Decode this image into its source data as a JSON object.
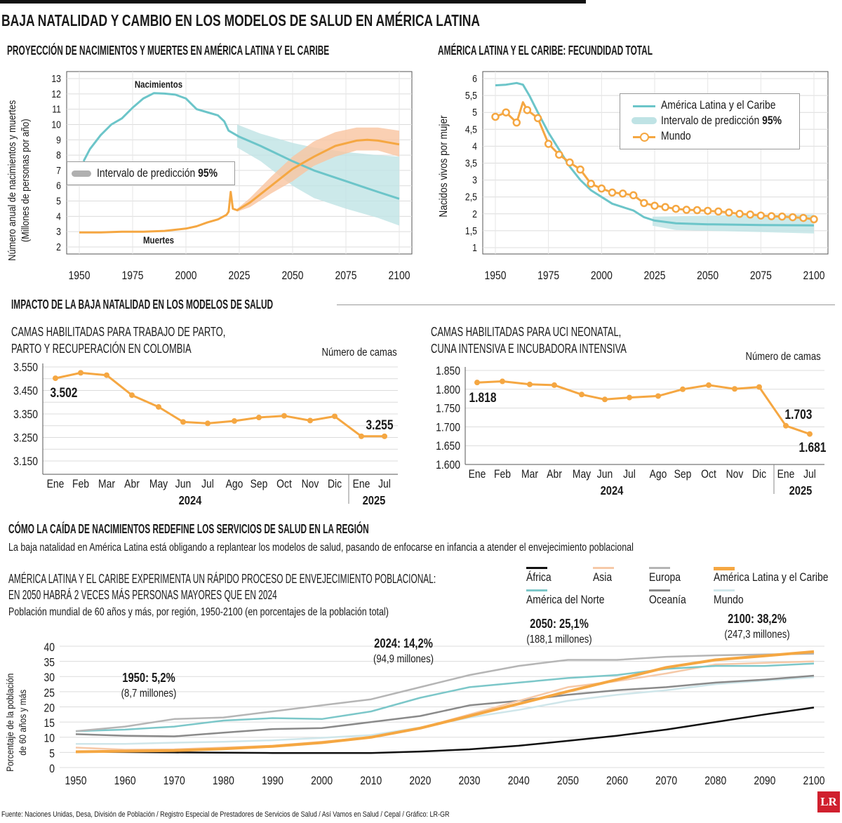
{
  "title": "BAJA NATALIDAD Y CAMBIO EN LOS MODELOS DE SALUD EN AMÉRICA LATINA",
  "colors": {
    "teal": "#6cc5c9",
    "teal_band": "#bfe3e5",
    "orange": "#f5a742",
    "orange_band": "#f9c4a0",
    "grid": "#dcdcdc"
  },
  "section2": {
    "title": "IMPACTO DE LA BAJA NATALIDAD EN LOS MODELOS DE SALUD"
  },
  "section3": {
    "title": "CÓMO LA CAÍDA DE NACIMIENTOS REDEFINE LOS SERVICIOS DE SALUD EN LA REGIÓN",
    "subtitle": "La baja natalidad en América Latina está obligando a replantear los modelos de salud, pasando de enfocarse en infancia a atender el envejecimiento poblacional"
  },
  "footer": {
    "source": "Fuente: Naciones Unidas, Desa, División de Población / Registro Especial de Prestadores de Servicios de Salud / Así Vamos en Salud / Cepal / Gráfico: LR-GR",
    "logo": "LR"
  },
  "chart_data": [
    {
      "type": "line",
      "title": "PROYECCIÓN DE NACIMIENTOS Y MUERTES EN AMÉRICA LATINA Y EL CARIBE",
      "ylabel": [
        "Número anual de nacimientos y muertes",
        "(Millones de personas por año)"
      ],
      "xlabel": "",
      "xlim": [
        1950,
        2100
      ],
      "ylim": [
        2,
        13
      ],
      "xticks": [
        "1950",
        "1975",
        "2000",
        "2025",
        "2050",
        "2075",
        "2100"
      ],
      "yticks": [
        "2",
        "3",
        "4",
        "5",
        "6",
        "7",
        "8",
        "9",
        "10",
        "11",
        "12",
        "13"
      ],
      "legend": {
        "label": "Intervalo de predicción ",
        "bold": "95%"
      },
      "series": [
        {
          "name": "Nacimientos",
          "color": "teal",
          "x": [
            1952,
            1955,
            1960,
            1965,
            1970,
            1975,
            1980,
            1985,
            1990,
            1995,
            2000,
            2005,
            2010,
            2015,
            2018,
            2020,
            2025,
            2035,
            2050,
            2060,
            2075,
            2090,
            2100
          ],
          "y": [
            7.6,
            8.4,
            9.3,
            10.0,
            10.4,
            11.1,
            11.7,
            12.05,
            12.02,
            11.95,
            11.7,
            11.0,
            10.8,
            10.6,
            10.2,
            9.6,
            9.2,
            8.6,
            7.6,
            7.0,
            6.3,
            5.6,
            5.15
          ],
          "band": {
            "x": [
              2024,
              2035,
              2050,
              2060,
              2075,
              2090,
              2100
            ],
            "lower": [
              8.5,
              7.6,
              6.0,
              5.2,
              4.5,
              3.9,
              3.4
            ],
            "upper": [
              10.0,
              9.4,
              8.8,
              8.5,
              8.2,
              8.0,
              7.9
            ]
          }
        },
        {
          "name": "Muertes",
          "color": "orange",
          "x": [
            1950,
            1960,
            1970,
            1980,
            1990,
            2000,
            2005,
            2010,
            2015,
            2019,
            2020,
            2021,
            2022,
            2024,
            2030,
            2040,
            2050,
            2060,
            2070,
            2080,
            2085,
            2090,
            2100
          ],
          "y": [
            2.95,
            2.95,
            3.0,
            3.0,
            3.05,
            3.2,
            3.35,
            3.6,
            3.8,
            4.1,
            4.3,
            5.6,
            4.5,
            4.4,
            4.9,
            6.0,
            7.1,
            7.9,
            8.6,
            8.95,
            9.0,
            8.95,
            8.7
          ],
          "band": {
            "x": [
              2024,
              2030,
              2040,
              2050,
              2060,
              2070,
              2080,
              2090,
              2100
            ],
            "lower": [
              4.3,
              4.6,
              5.5,
              6.3,
              7.3,
              7.9,
              8.3,
              8.3,
              7.9
            ],
            "upper": [
              4.5,
              5.2,
              6.6,
              7.9,
              8.9,
              9.5,
              9.8,
              9.8,
              9.6
            ]
          }
        }
      ]
    },
    {
      "type": "line",
      "title": "AMÉRICA LATINA Y EL CARIBE: FECUNDIDAD TOTAL",
      "ylabel": "Nacidos vivos por mujer",
      "xlim": [
        1950,
        2100
      ],
      "ylim": [
        1,
        6
      ],
      "xticks": [
        "1950",
        "1975",
        "2000",
        "2025",
        "2050",
        "2075",
        "2100"
      ],
      "yticks": [
        "1",
        "1,5",
        "2",
        "2,5",
        "3",
        "3,5",
        "4",
        "4,5",
        "5",
        "5,5",
        "6"
      ],
      "legend": {
        "items": [
          "América Latina y el Caribe",
          "Intervalo de predicción ",
          "Mundo"
        ],
        "bold": "95%"
      },
      "series": [
        {
          "name": "América Latina y el Caribe",
          "color": "teal",
          "x": [
            1950,
            1955,
            1960,
            1963,
            1966,
            1970,
            1975,
            1980,
            1985,
            1990,
            1995,
            2000,
            2005,
            2010,
            2015,
            2020,
            2025,
            2035,
            2050,
            2075,
            2100
          ],
          "y": [
            5.8,
            5.82,
            5.87,
            5.82,
            5.5,
            5.0,
            4.4,
            3.9,
            3.4,
            3.0,
            2.7,
            2.5,
            2.3,
            2.2,
            2.1,
            1.9,
            1.8,
            1.72,
            1.69,
            1.67,
            1.66
          ],
          "band": {
            "x": [
              2024,
              2035,
              2050,
              2075,
              2100
            ],
            "lower": [
              1.65,
              1.52,
              1.5,
              1.46,
              1.42
            ],
            "upper": [
              1.92,
              1.93,
              1.95,
              1.97,
              1.98
            ]
          }
        },
        {
          "name": "Mundo",
          "color": "orange",
          "markers": true,
          "x": [
            1950,
            1955,
            1960,
            1963,
            1965,
            1970,
            1975,
            1980,
            1985,
            1990,
            1995,
            2000,
            2005,
            2010,
            2015,
            2020,
            2025,
            2030,
            2035,
            2040,
            2045,
            2050,
            2055,
            2060,
            2065,
            2070,
            2075,
            2080,
            2085,
            2090,
            2095,
            2100
          ],
          "y": [
            4.87,
            5.0,
            4.7,
            5.3,
            5.07,
            4.83,
            4.07,
            3.75,
            3.52,
            3.31,
            2.89,
            2.75,
            2.63,
            2.6,
            2.55,
            2.32,
            2.24,
            2.2,
            2.15,
            2.12,
            2.11,
            2.09,
            2.07,
            2.04,
            2.0,
            1.98,
            1.95,
            1.93,
            1.92,
            1.9,
            1.88,
            1.84
          ]
        }
      ]
    },
    {
      "type": "line",
      "title": [
        "CAMAS HABILITADAS PARA TRABAJO DE PARTO,",
        "PARTO Y RECUPERACIÓN EN COLOMBIA"
      ],
      "unit": "Número de camas",
      "ylim": [
        3150,
        3550
      ],
      "yticks": [
        "3.150",
        "3.250",
        "3.350",
        "3.450",
        "3.550"
      ],
      "categories": [
        "Ene",
        "Feb",
        "Mar",
        "Abr",
        "May",
        "Jun",
        "Jul",
        "Ago",
        "Sep",
        "Oct",
        "Nov",
        "Dic",
        "Ene",
        "Jul"
      ],
      "years": [
        "2024",
        "2025"
      ],
      "values": [
        3502,
        3525,
        3515,
        3430,
        3380,
        3316,
        3310,
        3320,
        3335,
        3342,
        3322,
        3340,
        3255,
        3255
      ],
      "labels": [
        "3.502",
        "3.255"
      ]
    },
    {
      "type": "line",
      "title": [
        "CAMAS HABILITADAS PARA UCI NEONATAL,",
        "CUNA INTENSIVA E INCUBADORA INTENSIVA"
      ],
      "unit": "Número de camas",
      "ylim": [
        1600,
        1850
      ],
      "yticks": [
        "1.600",
        "1.650",
        "1.700",
        "1.750",
        "1.800",
        "1.850"
      ],
      "categories": [
        "Ene",
        "Feb",
        "Mar",
        "Abr",
        "May",
        "Jun",
        "Jul",
        "Ago",
        "Sep",
        "Oct",
        "Nov",
        "Dic",
        "Ene",
        "Jul"
      ],
      "years": [
        "2024",
        "2025"
      ],
      "values": [
        1818,
        1821,
        1813,
        1811,
        1786,
        1773,
        1778,
        1782,
        1800,
        1811,
        1801,
        1806,
        1703,
        1681
      ],
      "labels": [
        "1.818",
        "1.703",
        "1.681"
      ]
    },
    {
      "type": "line",
      "title": [
        "AMÉRICA LATINA Y EL CARIBE EXPERIMENTA UN RÁPIDO PROCESO DE ENVEJECIMIENTO POBLACIONAL:",
        "EN 2050 HABRÁ 2 VECES MÁS PERSONAS MAYORES QUE EN 2024"
      ],
      "subtitle": "Población mundial de 60 años y más, por región, 1950-2100 (en porcentajes de la población total)",
      "ylabel": [
        "Porcentaje de la población",
        "de 60 años y más"
      ],
      "xlim": [
        1950,
        2100
      ],
      "ylim": [
        0,
        40
      ],
      "xticks": [
        "1950",
        "1960",
        "1970",
        "1980",
        "1990",
        "2000",
        "2010",
        "2020",
        "2030",
        "2040",
        "2050",
        "2060",
        "2070",
        "2080",
        "2090",
        "2100"
      ],
      "yticks": [
        "0",
        "5",
        "10",
        "15",
        "20",
        "25",
        "30",
        "35",
        "40"
      ],
      "annotations": [
        {
          "title": "1950: 5,2%",
          "sub": "(8,7 millones)"
        },
        {
          "title": "2024: 14,2%",
          "sub": "(94,9 millones)"
        },
        {
          "title": "2050: 25,1%",
          "sub": "(188,1 millones)"
        },
        {
          "title": "2100: 38,2%",
          "sub": "(247,3 millones)"
        }
      ],
      "x": [
        1950,
        1960,
        1970,
        1980,
        1990,
        2000,
        2010,
        2020,
        2030,
        2040,
        2050,
        2060,
        2070,
        2080,
        2090,
        2100
      ],
      "series": [
        {
          "name": "África",
          "color": "#111111",
          "y": [
            5.2,
            5.1,
            5.0,
            4.9,
            4.8,
            4.8,
            4.8,
            5.3,
            6.0,
            7.2,
            8.8,
            10.5,
            12.5,
            15.0,
            17.5,
            19.8
          ]
        },
        {
          "name": "Asia",
          "color": "#f6c9a8",
          "y": [
            6.6,
            5.9,
            6.0,
            6.6,
            7.2,
            8.5,
            10.0,
            13.0,
            17.5,
            22.0,
            26.5,
            28.5,
            31.0,
            34.0,
            34.5,
            35.0
          ]
        },
        {
          "name": "Europa",
          "color": "#b5b5b5",
          "y": [
            12.0,
            13.5,
            16.0,
            16.5,
            18.5,
            20.5,
            22.5,
            26.5,
            30.5,
            33.5,
            35.5,
            35.5,
            36.5,
            37.0,
            37.3,
            37.5
          ]
        },
        {
          "name": "América Latina y el Caribe",
          "color": "#f5a742",
          "y": [
            5.2,
            5.4,
            5.6,
            6.2,
            7.0,
            8.2,
            10.0,
            13.0,
            17.0,
            21.0,
            25.1,
            29.0,
            33.0,
            35.5,
            36.8,
            38.2
          ]
        },
        {
          "name": "América del Norte",
          "color": "#7cc7c9",
          "y": [
            12.0,
            12.5,
            13.5,
            15.5,
            16.3,
            16.0,
            18.5,
            23.0,
            26.5,
            28.0,
            29.5,
            30.5,
            32.5,
            33.5,
            33.5,
            34.3
          ]
        },
        {
          "name": "Oceanía",
          "color": "#8a8a8a",
          "y": [
            11.0,
            10.5,
            10.3,
            11.5,
            12.7,
            13.0,
            15.0,
            17.0,
            20.5,
            22.0,
            24.0,
            25.5,
            26.5,
            28.0,
            29.0,
            30.3
          ]
        },
        {
          "name": "Mundo",
          "color": "#cfe6ea",
          "y": [
            7.8,
            7.8,
            8.2,
            8.5,
            9.0,
            9.8,
            10.7,
            13.2,
            16.5,
            19.0,
            22.0,
            24.0,
            25.5,
            27.5,
            28.7,
            29.8
          ]
        }
      ]
    }
  ]
}
